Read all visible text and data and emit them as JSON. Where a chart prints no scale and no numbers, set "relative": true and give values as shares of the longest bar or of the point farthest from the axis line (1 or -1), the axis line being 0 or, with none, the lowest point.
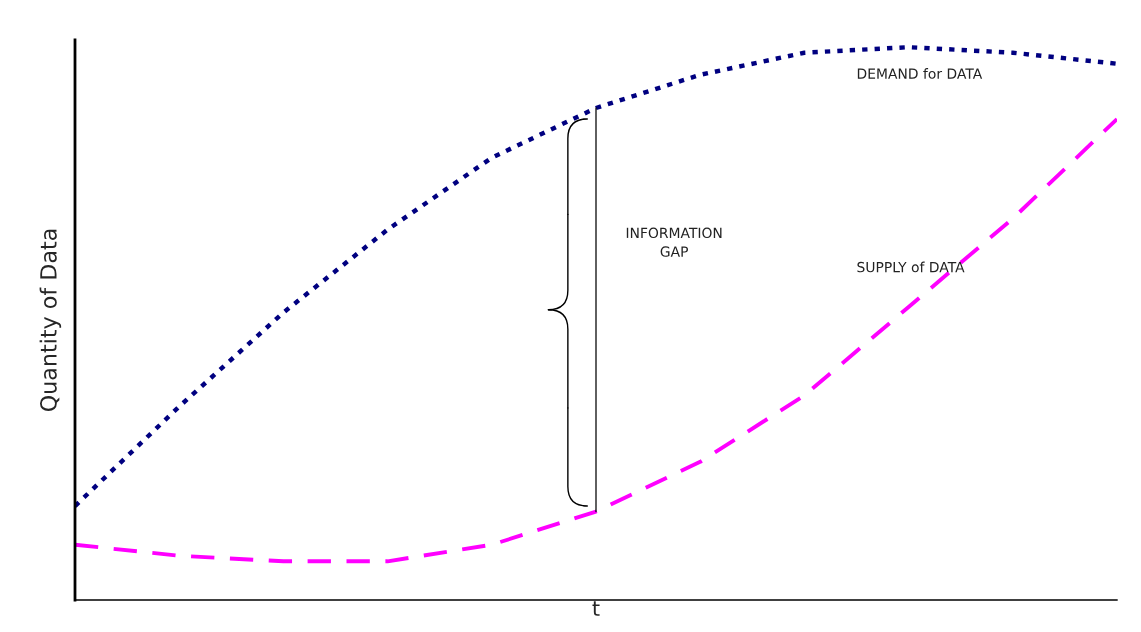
{
  "chart_data": {
    "type": "line",
    "relative": true,
    "xlabel": "t",
    "ylabel": "Quantity of Data",
    "categories": [
      null,
      null,
      null,
      null,
      null,
      null,
      null,
      null,
      null,
      null,
      null
    ],
    "series": [
      {
        "name": "DEMAND for DATA",
        "color": "#000080",
        "line_style": "dotted",
        "values": [
          0.17,
          0.35,
          0.52,
          0.67,
          0.8,
          0.89,
          0.95,
          0.99,
          1.0,
          0.99,
          0.97
        ]
      },
      {
        "name": "SUPPLY of DATA",
        "color": "#ff00ff",
        "line_style": "dashed",
        "values": [
          0.1,
          0.08,
          0.07,
          0.07,
          0.1,
          0.16,
          0.25,
          0.37,
          0.53,
          0.69,
          0.87
        ]
      }
    ],
    "annotations": [
      "INFORMATION\nGAP"
    ],
    "legend": false
  }
}
